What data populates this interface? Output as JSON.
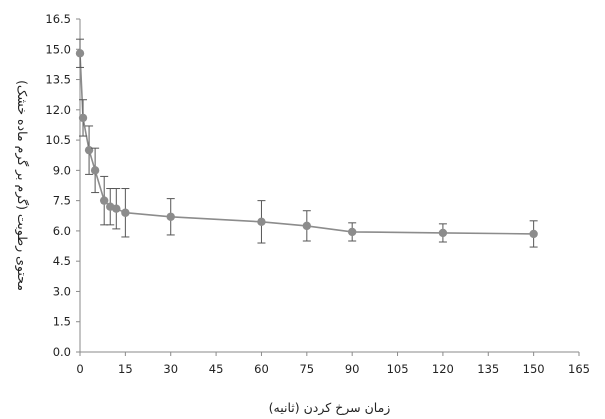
{
  "chart_data": {
    "type": "line",
    "title": "",
    "xlabel": "زمان سرخ کردن (ثانیه)",
    "ylabel": "محتوی رطوبت (گرم بر گرم ماده خشک)",
    "xlim": [
      0,
      165
    ],
    "ylim": [
      0,
      16.5
    ],
    "x_ticks": [
      "0",
      "15",
      "30",
      "45",
      "60",
      "75",
      "90",
      "105",
      "120",
      "135",
      "150",
      "165"
    ],
    "y_ticks": [
      "0.0",
      "1.5",
      "3.0",
      "4.5",
      "6.0",
      "7.5",
      "9.0",
      "10.5",
      "12.0",
      "13.5",
      "15.0",
      "16.5"
    ],
    "grid": false,
    "legend": "none",
    "series": [
      {
        "color": "#8c8c8c",
        "x": [
          0,
          1,
          3,
          5,
          8,
          10,
          12,
          15,
          30,
          60,
          75,
          90,
          120,
          150
        ],
        "y": [
          14.8,
          11.6,
          10.0,
          9.0,
          7.5,
          7.2,
          7.1,
          6.9,
          6.7,
          6.45,
          6.25,
          5.95,
          5.9,
          5.85
        ],
        "error": [
          0.7,
          0.9,
          1.2,
          1.1,
          1.2,
          0.9,
          1.0,
          1.2,
          0.9,
          1.05,
          0.75,
          0.45,
          0.45,
          0.65
        ]
      }
    ]
  }
}
